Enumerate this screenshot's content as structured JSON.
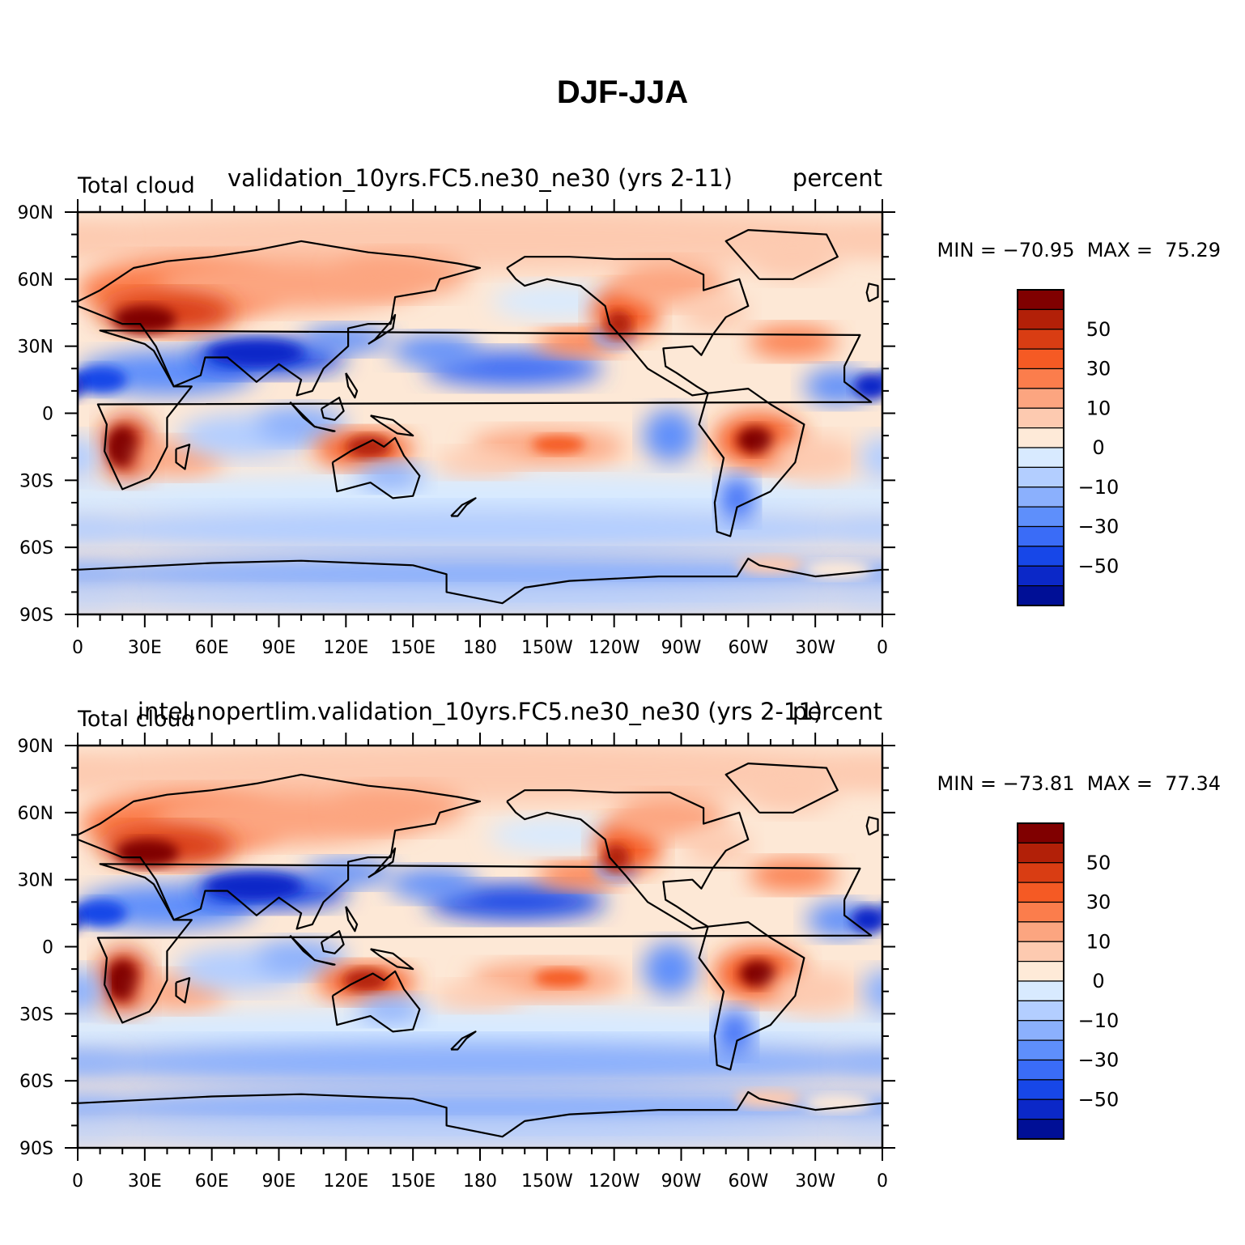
{
  "figure": {
    "title": "DJF-JJA"
  },
  "panels": [
    {
      "left_title": "Total cloud",
      "center_title": "validation_10yrs.FC5.ne30_ne30 (yrs 2-11)",
      "right_title": "percent",
      "min_max": "MIN = −70.95  MAX =  75.29"
    },
    {
      "left_title": "Total cloud",
      "center_title": "intel.nopertlim.validation_10yrs.FC5.ne30_ne30 (yrs 2-11)",
      "right_title": "percent",
      "min_max": "MIN = −73.81  MAX =  77.34"
    }
  ],
  "axes": {
    "lat_ticks": [
      "90N",
      "60N",
      "30N",
      "0",
      "30S",
      "60S",
      "90S"
    ],
    "lon_ticks": [
      "0",
      "30E",
      "60E",
      "90E",
      "120E",
      "150E",
      "180",
      "150W",
      "120W",
      "90W",
      "60W",
      "30W",
      "0"
    ]
  },
  "colorbar": {
    "labels": [
      "50",
      "30",
      "10",
      "0",
      "−10",
      "−30",
      "−50"
    ],
    "colors": [
      "#800000",
      "#b22008",
      "#d93d13",
      "#f55a24",
      "#fb7d4c",
      "#fca580",
      "#fdcab0",
      "#feead8",
      "#d8eaff",
      "#b3ceff",
      "#8bb0fd",
      "#5e8ffb",
      "#3a6cf7",
      "#1747e8",
      "#0b28c8",
      "#000f96"
    ]
  },
  "colors": {
    "ocean_neutral": "#fde8d6",
    "coast": "#000000"
  }
}
